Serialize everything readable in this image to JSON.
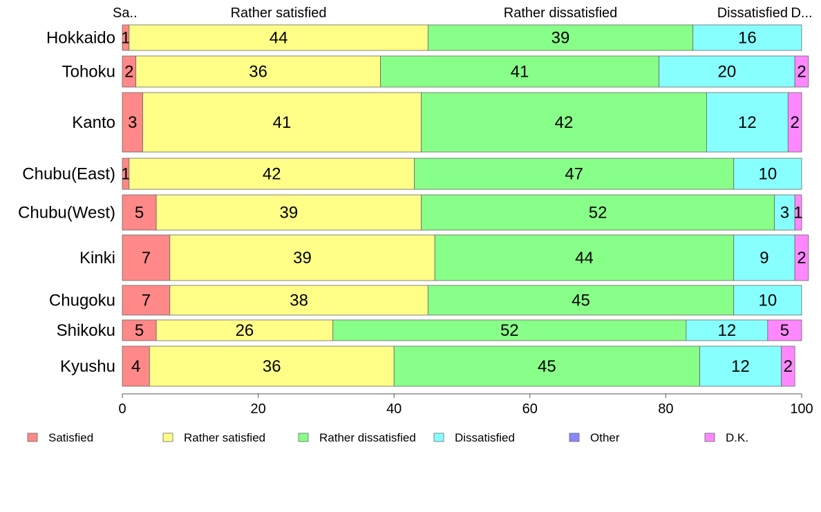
{
  "chart_data": {
    "type": "bar",
    "orientation": "horizontal",
    "stacked": true,
    "title": "",
    "xlabel": "",
    "ylabel": "",
    "xlim": [
      0,
      100
    ],
    "x_ticks": [
      "0",
      "20",
      "40",
      "60",
      "80",
      "100"
    ],
    "categories": [
      "Hokkaido",
      "Tohoku",
      "Kanto",
      "Chubu(East)",
      "Chubu(West)",
      "Kinki",
      "Chugoku",
      "Shikoku",
      "Kyushu"
    ],
    "series": [
      {
        "name": "Satisfied",
        "color": "#ff8888",
        "values": [
          1,
          2,
          3,
          1,
          5,
          7,
          7,
          5,
          4
        ]
      },
      {
        "name": "Rather satisfied",
        "color": "#ffff88",
        "values": [
          44,
          36,
          41,
          42,
          39,
          39,
          38,
          26,
          36
        ]
      },
      {
        "name": "Rather dissatisfied",
        "color": "#88ff88",
        "values": [
          39,
          41,
          42,
          47,
          52,
          44,
          45,
          52,
          45
        ]
      },
      {
        "name": "Dissatisfied",
        "color": "#88ffff",
        "values": [
          16,
          20,
          12,
          10,
          3,
          9,
          10,
          12,
          12
        ]
      },
      {
        "name": "Other",
        "color": "#8888ff",
        "values": [
          0,
          0,
          0,
          0,
          0,
          0,
          0,
          0,
          0
        ]
      },
      {
        "name": "D.K.",
        "color": "#ff88ff",
        "values": [
          0,
          2,
          2,
          0,
          1,
          2,
          0,
          5,
          2
        ]
      }
    ],
    "value_labels": [
      [
        "1",
        "44",
        "39",
        "16",
        "",
        ""
      ],
      [
        "2",
        "36",
        "41",
        "20",
        "",
        "2"
      ],
      [
        "3",
        "41",
        "42",
        "12",
        "",
        "2"
      ],
      [
        "1",
        "42",
        "47",
        "10",
        "",
        ""
      ],
      [
        "5",
        "39",
        "52",
        "3",
        "",
        "1"
      ],
      [
        "7",
        "39",
        "44",
        "9",
        "",
        "2"
      ],
      [
        "7",
        "38",
        "45",
        "10",
        "",
        ""
      ],
      [
        "5",
        "26",
        "52",
        "12",
        "",
        "5"
      ],
      [
        "4",
        "36",
        "45",
        "12",
        "",
        "2"
      ]
    ],
    "top_labels": [
      "Sa..",
      "Rather satisfied",
      "Rather dissatisfied",
      "Dissatisfied",
      "D..."
    ],
    "legend_position": "bottom",
    "grid": false
  }
}
